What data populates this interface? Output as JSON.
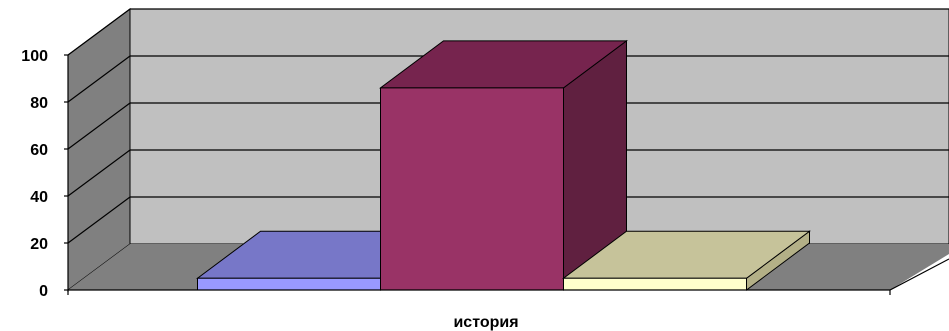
{
  "chart_data": {
    "type": "bar",
    "categories": [
      "история"
    ],
    "series": [
      {
        "values": [
          5
        ],
        "colors": {
          "front": "#9999FF",
          "top": "#7777C8",
          "side": "#5A5A99"
        }
      },
      {
        "values": [
          86
        ],
        "colors": {
          "front": "#993366",
          "top": "#76244E",
          "side": "#602040"
        }
      },
      {
        "values": [
          5
        ],
        "colors": {
          "front": "#FFFFCC",
          "top": "#C6C39A",
          "side": "#B3B087"
        }
      }
    ],
    "title": "",
    "xlabel": "",
    "ylabel": "",
    "ylim": [
      0,
      100
    ],
    "yticks": [
      0,
      20,
      40,
      60,
      80,
      100
    ],
    "grid": true,
    "legend": "none",
    "colors": {
      "back_wall": "#C0C0C0",
      "side_wall": "#808080",
      "floor": "#808080",
      "gridline": "#000000"
    }
  }
}
